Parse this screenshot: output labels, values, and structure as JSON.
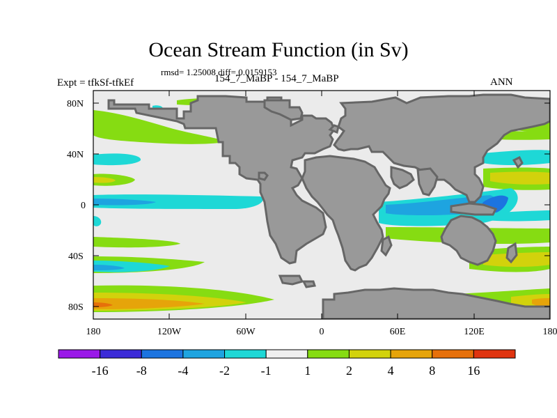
{
  "title": "Ocean Stream Function (in Sv)",
  "stats": "rmsd= 1.25008 diff= 0.0159153",
  "expt_label": "Expt = tfkSf-tfkEf",
  "case_label": "154_7_MaBP - 154_7_MaBP",
  "season": "ANN",
  "lat_ticks": [
    "80N",
    "40N",
    "0",
    "40S",
    "80S"
  ],
  "lon_ticks": [
    "180",
    "120W",
    "60W",
    "0",
    "60E",
    "120E",
    "180"
  ],
  "colorbar": {
    "labels": [
      "-16",
      "-8",
      "-4",
      "-2",
      "-1",
      "1",
      "2",
      "4",
      "8",
      "16"
    ],
    "colors": [
      "#9a18e8",
      "#3c2bd8",
      "#1c74e0",
      "#1ea4e0",
      "#1ed8d6",
      "#f0f0f0",
      "#86dc12",
      "#d2d20c",
      "#e6a40a",
      "#e6700a",
      "#e03410"
    ]
  },
  "map_colors": {
    "ocean_background": "#ebebeb",
    "land": "#999999",
    "coastline": "#666666"
  }
}
